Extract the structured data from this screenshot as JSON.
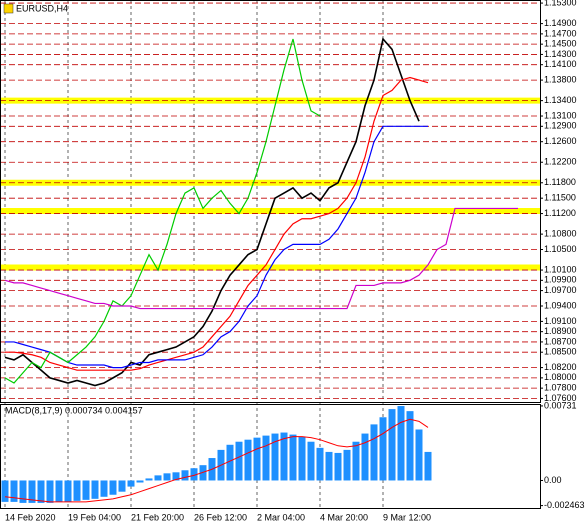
{
  "chart_data": [
    {
      "type": "line",
      "title": "EURUSD,H4",
      "categories": [
        "14 Feb 2020",
        null,
        null,
        null,
        null,
        null,
        null,
        "19 Feb 04:00",
        null,
        null,
        null,
        null,
        null,
        null,
        "21 Feb 20:00",
        null,
        null,
        null,
        null,
        null,
        null,
        "26 Feb 12:00",
        null,
        null,
        null,
        null,
        null,
        null,
        "2 Mar 04:00",
        null,
        null,
        null,
        null,
        null,
        null,
        "4 Mar 20:00",
        null,
        null,
        null,
        null,
        null,
        null,
        "9 Mar 12:00",
        null,
        null,
        null,
        null,
        null,
        null,
        null,
        null,
        null,
        null,
        null,
        null,
        null,
        null,
        null
      ],
      "series": [
        {
          "color": "#000000",
          "values": [
            1.084,
            1.0835,
            1.0845,
            1.083,
            1.0815,
            1.08,
            1.0795,
            1.079,
            1.0795,
            1.079,
            1.0785,
            1.079,
            1.08,
            1.081,
            1.083,
            1.0825,
            1.0845,
            1.085,
            1.0855,
            1.086,
            1.087,
            1.088,
            1.09,
            1.093,
            1.097,
            1.1,
            1.102,
            1.104,
            1.105,
            1.11,
            1.115,
            1.116,
            1.117,
            1.115,
            1.116,
            1.1145,
            1.117,
            1.118,
            1.122,
            1.126,
            1.133,
            1.138,
            1.146,
            1.144,
            1.139,
            1.134,
            1.13,
            null,
            null,
            null,
            null,
            null,
            null,
            null,
            null,
            null,
            null,
            null
          ]
        },
        {
          "color": "#ff0000",
          "values": [
            1.085,
            1.085,
            1.0848,
            1.0845,
            1.084,
            1.083,
            1.0825,
            1.082,
            1.0815,
            1.0815,
            1.0815,
            1.0815,
            1.0815,
            1.0815,
            1.0815,
            1.0818,
            1.0825,
            1.083,
            1.0835,
            1.084,
            1.0845,
            1.085,
            1.086,
            1.088,
            1.09,
            1.092,
            1.095,
            1.098,
            1.1,
            1.102,
            1.105,
            1.108,
            1.11,
            1.111,
            1.111,
            1.1115,
            1.112,
            1.113,
            1.115,
            1.118,
            1.123,
            1.13,
            1.135,
            1.136,
            1.138,
            1.1385,
            1.138,
            1.1375,
            null,
            null,
            null,
            null,
            null,
            null,
            null,
            null,
            null,
            null
          ]
        },
        {
          "color": "#0000ff",
          "values": [
            1.087,
            1.087,
            1.0865,
            1.086,
            1.0855,
            1.085,
            1.084,
            1.083,
            1.0825,
            1.0825,
            1.0825,
            1.0825,
            1.082,
            1.082,
            1.0825,
            1.083,
            1.083,
            1.0835,
            1.0835,
            1.0835,
            1.0835,
            1.084,
            1.0845,
            1.086,
            1.088,
            1.089,
            1.091,
            1.094,
            1.096,
            1.1,
            1.103,
            1.105,
            1.106,
            1.106,
            1.106,
            1.106,
            1.107,
            1.109,
            1.112,
            1.115,
            1.12,
            1.126,
            1.129,
            1.129,
            1.129,
            1.129,
            1.129,
            1.129,
            null,
            null,
            null,
            null,
            null,
            null,
            null,
            null,
            null,
            null
          ]
        },
        {
          "color": "#00cc00",
          "values": [
            1.08,
            1.079,
            1.081,
            1.083,
            1.082,
            1.085,
            1.084,
            1.083,
            1.0845,
            1.086,
            1.088,
            1.091,
            1.095,
            1.094,
            1.096,
            1.1,
            1.104,
            1.101,
            1.106,
            1.112,
            1.116,
            1.117,
            1.113,
            1.115,
            1.1165,
            1.114,
            1.112,
            1.115,
            1.12,
            1.126,
            1.133,
            1.14,
            1.146,
            1.138,
            1.132,
            1.131,
            null,
            null,
            null,
            null,
            null,
            null,
            null,
            null,
            null,
            null,
            null,
            null,
            null,
            null,
            null,
            null,
            null,
            null,
            null,
            null,
            null,
            null
          ]
        },
        {
          "color": "#cc00cc",
          "values": [
            1.099,
            1.0985,
            1.0985,
            1.098,
            1.0975,
            1.097,
            1.0965,
            1.096,
            1.0955,
            1.095,
            1.0945,
            1.0945,
            1.094,
            1.094,
            1.094,
            1.0935,
            1.0935,
            1.0935,
            1.0935,
            1.0935,
            1.0935,
            1.0935,
            1.0935,
            1.0935,
            1.0935,
            1.0935,
            1.0935,
            1.0935,
            1.0935,
            1.0935,
            1.0935,
            1.0935,
            1.0935,
            1.0935,
            1.0935,
            1.0935,
            1.0935,
            1.0935,
            1.0935,
            1.098,
            1.098,
            1.098,
            1.0985,
            1.0985,
            1.0985,
            1.099,
            1.1,
            1.102,
            1.105,
            1.106,
            1.113,
            1.113,
            1.113,
            1.113,
            1.113,
            1.113,
            1.113,
            1.113
          ]
        }
      ],
      "levels": [
        1.134,
        1.118,
        1.1125,
        1.1015
      ],
      "level_color": "#ffff00",
      "ylim": [
        1.0753,
        1.1536
      ],
      "yticks": [
        {
          "value": 1.153,
          "label": "1.15300"
        },
        {
          "value": 1.149,
          "label": "1.14900"
        },
        {
          "value": 1.147,
          "label": "1.14700"
        },
        {
          "value": 1.145,
          "label": "1.14500"
        },
        {
          "value": 1.143,
          "label": "1.14300"
        },
        {
          "value": 1.141,
          "label": "1.14100"
        },
        {
          "value": 1.138,
          "label": "1.13800"
        },
        {
          "value": 1.134,
          "label": "1.13400"
        },
        {
          "value": 1.131,
          "label": "1.13100"
        },
        {
          "value": 1.129,
          "label": "1.12900"
        },
        {
          "value": 1.126,
          "label": "1.12600"
        },
        {
          "value": 1.122,
          "label": "1.12200"
        },
        {
          "value": 1.118,
          "label": "1.11800"
        },
        {
          "value": 1.115,
          "label": "1.11500"
        },
        {
          "value": 1.112,
          "label": "1.11200"
        },
        {
          "value": 1.108,
          "label": "1.10800"
        },
        {
          "value": 1.105,
          "label": "1.10500"
        },
        {
          "value": 1.101,
          "label": "1.10100"
        },
        {
          "value": 1.099,
          "label": "1.09900"
        },
        {
          "value": 1.097,
          "label": "1.09700"
        },
        {
          "value": 1.094,
          "label": "1.09400"
        },
        {
          "value": 1.091,
          "label": "1.09100"
        },
        {
          "value": 1.089,
          "label": "1.08900"
        },
        {
          "value": 1.087,
          "label": "1.08700"
        },
        {
          "value": 1.085,
          "label": "1.08500"
        },
        {
          "value": 1.082,
          "label": "1.08200"
        },
        {
          "value": 1.08,
          "label": "1.08000"
        },
        {
          "value": 1.078,
          "label": "1.07800"
        },
        {
          "value": 1.076,
          "label": "1.07600"
        }
      ],
      "grid": true,
      "grid_color": "#c00000"
    },
    {
      "type": "bar",
      "title": "MACD(8,17,9) 0.000734 0.004157",
      "color": "#1e90ff",
      "values": [
        -0.0021,
        -0.0021,
        -0.0022,
        -0.0022,
        -0.0022,
        -0.0022,
        -0.0021,
        -0.0021,
        -0.002,
        -0.0019,
        -0.0018,
        -0.0016,
        -0.0014,
        -0.0011,
        -0.0006,
        -0.0002,
        0.0002,
        0.0005,
        0.0007,
        0.0008,
        0.001,
        0.0012,
        0.0015,
        0.0022,
        0.003,
        0.0035,
        0.0038,
        0.004,
        0.0042,
        0.0044,
        0.0046,
        0.0047,
        0.0045,
        0.0043,
        0.0038,
        0.0032,
        0.0028,
        0.0027,
        0.003,
        0.0038,
        0.0046,
        0.0055,
        0.0062,
        0.007,
        0.0073,
        0.0068,
        0.005,
        0.0028,
        null,
        null,
        null,
        null,
        null,
        null,
        null,
        null,
        null,
        null
      ],
      "series": [
        {
          "color": "#ff0000",
          "values": [
            -0.0016,
            -0.0017,
            -0.0018,
            -0.0019,
            -0.002,
            -0.0021,
            -0.0021,
            -0.0021,
            -0.0021,
            -0.0021,
            -0.002,
            -0.0019,
            -0.0018,
            -0.0016,
            -0.0014,
            -0.0011,
            -0.0008,
            -0.0005,
            -0.0002,
            0.0001,
            0.0003,
            0.0005,
            0.0008,
            0.0011,
            0.0015,
            0.0019,
            0.0023,
            0.0027,
            0.0031,
            0.0034,
            0.0038,
            0.0041,
            0.0043,
            0.0043,
            0.0042,
            0.004,
            0.0037,
            0.0034,
            0.0033,
            0.0034,
            0.0037,
            0.0041,
            0.0046,
            0.0052,
            0.0057,
            0.006,
            0.0058,
            0.0052,
            null,
            null,
            null,
            null,
            null,
            null,
            null,
            null,
            null,
            null
          ]
        }
      ],
      "ylim": [
        -0.0027,
        0.0075
      ],
      "yticks": [
        0.00731,
        {
          "value": 0,
          "label": "0.00"
        },
        -0.002463
      ]
    }
  ]
}
